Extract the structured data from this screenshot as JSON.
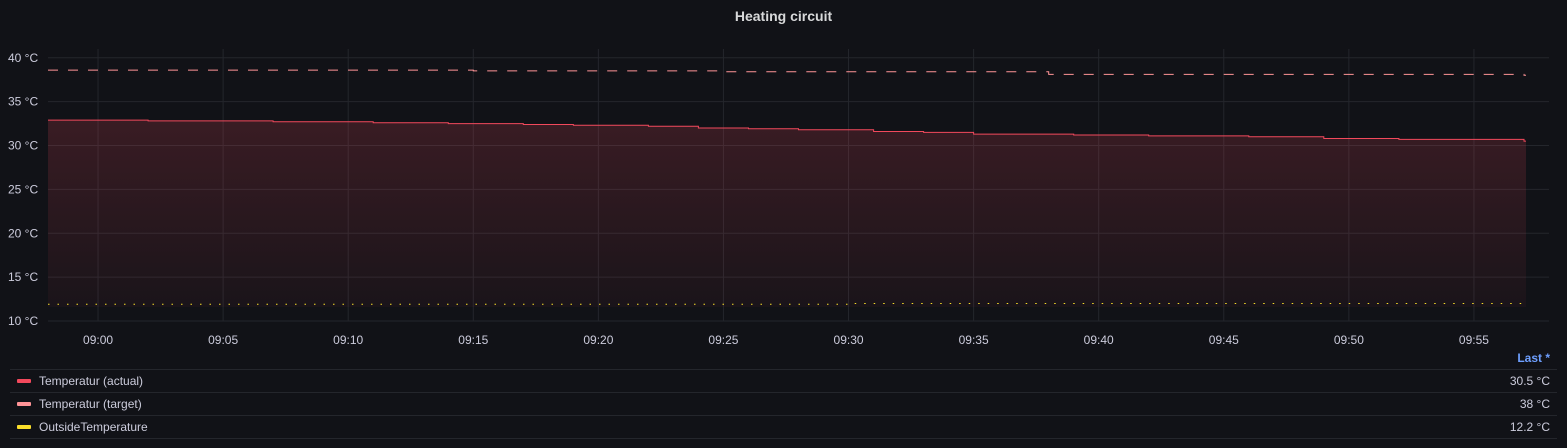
{
  "chart_data": {
    "type": "line",
    "title": "Heating circuit",
    "y_ticks": [
      "40 °C",
      "35 °C",
      "30 °C",
      "25 °C",
      "20 °C",
      "15 °C",
      "10 °C"
    ],
    "x_ticks": [
      "09:00",
      "09:05",
      "09:10",
      "09:15",
      "09:20",
      "09:25",
      "09:30",
      "09:35",
      "09:40",
      "09:45",
      "09:50",
      "09:55"
    ],
    "ylim": [
      10,
      41
    ],
    "xlim": [
      "08:58",
      "09:58"
    ],
    "grid": true,
    "legend_header": "Last *",
    "series": [
      {
        "name": "Temperatur (actual)",
        "color": "#f2495c",
        "style": "solid-fill",
        "last": "30.5 °C",
        "x": [
          "08:58",
          "09:02",
          "09:07",
          "09:11",
          "09:14",
          "09:17",
          "09:19",
          "09:22",
          "09:24",
          "09:26",
          "09:28",
          "09:31",
          "09:33",
          "09:35",
          "09:39",
          "09:42",
          "09:46",
          "09:49",
          "09:52",
          "09:57"
        ],
        "values": [
          32.9,
          32.8,
          32.7,
          32.6,
          32.5,
          32.4,
          32.3,
          32.2,
          32.0,
          31.9,
          31.8,
          31.6,
          31.5,
          31.3,
          31.2,
          31.1,
          31.0,
          30.8,
          30.7,
          30.5
        ]
      },
      {
        "name": "Temperatur (target)",
        "color": "#ff9497",
        "style": "dashed",
        "last": "38 °C",
        "x": [
          "08:58",
          "09:15",
          "09:25",
          "09:38",
          "09:57"
        ],
        "values": [
          38.6,
          38.5,
          38.4,
          38.1,
          38.0
        ]
      },
      {
        "name": "OutsideTemperature",
        "color": "#fade2a",
        "style": "dotted",
        "last": "12.2 °C",
        "x": [
          "08:58",
          "09:30",
          "09:57"
        ],
        "values": [
          11.9,
          12.0,
          12.2
        ]
      }
    ]
  }
}
